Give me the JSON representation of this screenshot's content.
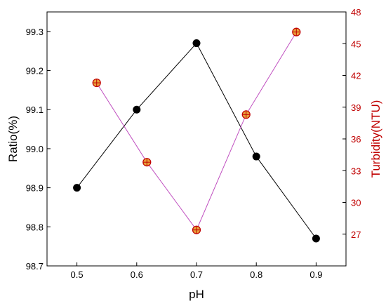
{
  "chart_data": {
    "type": "line",
    "xlabel": "pH",
    "ylabel_left": "Ratio(%)",
    "ylabel_right": "Turbidity(NTU)",
    "xlim": [
      0.45,
      0.95
    ],
    "ylim_left": [
      98.7,
      99.35
    ],
    "ylim_right": [
      24,
      48
    ],
    "x_ticks": [
      "0.5",
      "0.6",
      "0.7",
      "0.8",
      "0.9"
    ],
    "y_left_ticks": [
      "98.7",
      "98.8",
      "98.9",
      "99.0",
      "99.1",
      "99.2",
      "99.3"
    ],
    "y_right_ticks": [
      "27",
      "30",
      "33",
      "36",
      "39",
      "42",
      "45",
      "48"
    ],
    "grid": false,
    "series": [
      {
        "axis": "left",
        "x": [
          0.5,
          0.6,
          0.7,
          0.8,
          0.9
        ],
        "values": [
          98.9,
          99.1,
          99.27,
          98.98,
          98.77
        ],
        "line_color": "#000000",
        "marker": "filled-circle",
        "marker_color": "#000000"
      },
      {
        "axis": "right",
        "x": [
          0.533,
          0.617,
          0.7,
          0.783,
          0.867
        ],
        "values": [
          41.3,
          33.8,
          27.4,
          38.3,
          46.1
        ],
        "line_color": "#c050c0",
        "marker": "crossed-circle",
        "marker_color": "#c00000"
      }
    ]
  }
}
